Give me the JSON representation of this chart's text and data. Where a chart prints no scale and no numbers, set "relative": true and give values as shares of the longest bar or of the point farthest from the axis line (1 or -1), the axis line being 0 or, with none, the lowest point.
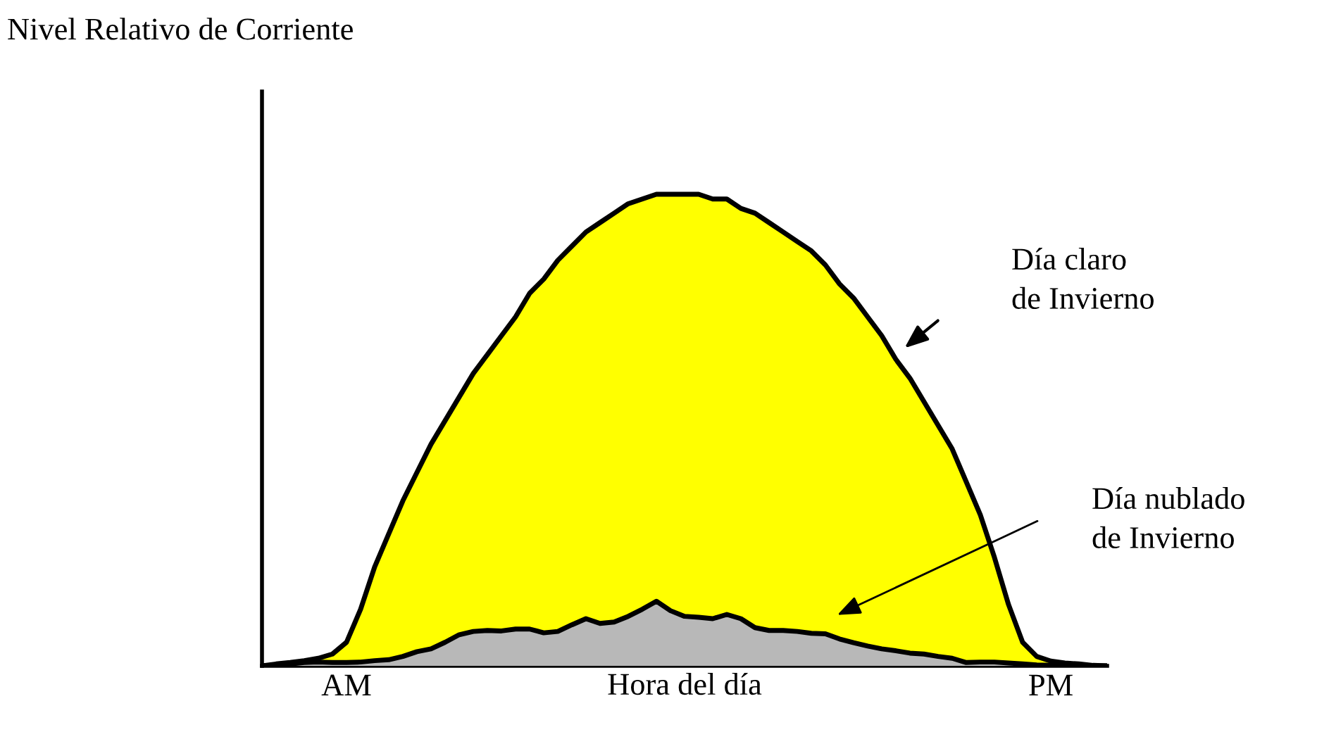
{
  "chart_data": {
    "type": "area",
    "title": "Nivel Relativo de Corriente",
    "xlabel": "Hora del día",
    "relative": true,
    "legend": false,
    "grid": false,
    "categories": [
      null,
      null,
      null,
      null,
      null,
      null,
      "AM",
      null,
      null,
      null,
      null,
      null,
      null,
      null,
      null,
      null,
      null,
      null,
      null,
      null,
      null,
      null,
      null,
      null,
      null,
      null,
      null,
      null,
      null,
      null,
      null,
      null,
      null,
      null,
      null,
      null,
      null,
      null,
      null,
      null,
      null,
      null,
      null,
      null,
      null,
      null,
      null,
      null,
      null,
      null,
      null,
      null,
      null,
      null,
      null,
      null,
      "PM",
      null,
      null,
      null,
      null
    ],
    "series": [
      {
        "color": "#ffff00",
        "values": [
          0,
          0.004,
          0.007,
          0.011,
          0.016,
          0.025,
          0.05,
          0.12,
          0.21,
          0.28,
          0.35,
          0.41,
          0.47,
          0.52,
          0.57,
          0.62,
          0.66,
          0.7,
          0.74,
          0.79,
          0.82,
          0.86,
          0.89,
          0.92,
          0.94,
          0.96,
          0.98,
          0.99,
          1.0,
          1.0,
          1.0,
          1.0,
          0.99,
          0.99,
          0.97,
          0.96,
          0.94,
          0.92,
          0.9,
          0.88,
          0.85,
          0.81,
          0.78,
          0.74,
          0.7,
          0.65,
          0.61,
          0.56,
          0.51,
          0.46,
          0.39,
          0.32,
          0.23,
          0.13,
          0.05,
          0.02,
          0.01,
          0.006,
          0.004,
          0.001,
          0
        ]
      },
      {
        "color": "#b8b8b8",
        "values": [
          0,
          0.001,
          0.004,
          0.007,
          0.008,
          0.007,
          0.007,
          0.008,
          0.011,
          0.013,
          0.02,
          0.03,
          0.036,
          0.05,
          0.066,
          0.073,
          0.075,
          0.074,
          0.078,
          0.078,
          0.07,
          0.073,
          0.087,
          0.1,
          0.09,
          0.093,
          0.105,
          0.12,
          0.137,
          0.117,
          0.105,
          0.103,
          0.1,
          0.109,
          0.1,
          0.081,
          0.075,
          0.075,
          0.073,
          0.069,
          0.068,
          0.057,
          0.049,
          0.042,
          0.036,
          0.032,
          0.027,
          0.025,
          0.02,
          0.016,
          0.007,
          0.008,
          0.008,
          0.006,
          0.004,
          0.002,
          0.001,
          0,
          0,
          0,
          0
        ]
      }
    ],
    "annotations": [
      "Día claro\nde Invierno",
      "Día nublado\nde Invierno"
    ]
  }
}
